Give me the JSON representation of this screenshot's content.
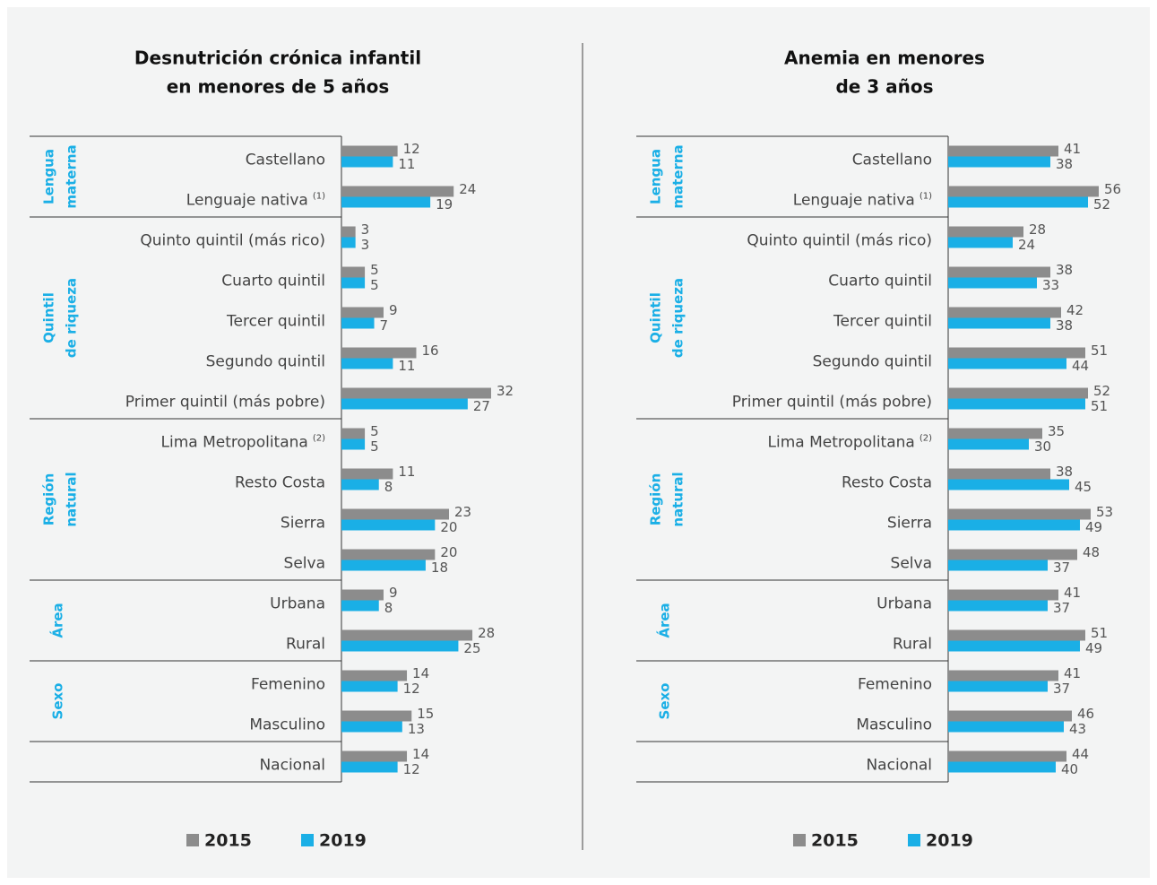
{
  "chart_data": [
    {
      "type": "bar",
      "orientation": "horizontal",
      "title": [
        "Desnutrición crónica infantil",
        "en menores de 5 años"
      ],
      "categories": [
        "Castellano",
        "Lenguaje nativa",
        "Quinto quintil (más rico)",
        "Cuarto quintil",
        "Tercer quintil",
        "Segundo quintil",
        "Primer quintil (más pobre)",
        "Lima Metropolitana",
        "Resto Costa",
        "Sierra",
        "Selva",
        "Urbana",
        "Rural",
        "Femenino",
        "Masculino",
        "Nacional"
      ],
      "category_notes": [
        null,
        "(1)",
        null,
        null,
        null,
        null,
        null,
        "(2)",
        null,
        null,
        null,
        null,
        null,
        null,
        null,
        null
      ],
      "groups": [
        {
          "label": [
            "Lengua",
            "materna"
          ],
          "size": 2
        },
        {
          "label": [
            "Quintil",
            "de riqueza"
          ],
          "size": 5
        },
        {
          "label": [
            "Región",
            "natural"
          ],
          "size": 4
        },
        {
          "label": [
            "Área"
          ],
          "size": 2
        },
        {
          "label": [
            "Sexo"
          ],
          "size": 2
        },
        {
          "label": [],
          "size": 1
        }
      ],
      "xlim": [
        0,
        46
      ],
      "series": [
        {
          "name": "2015",
          "color": "#8c8c8c",
          "values": [
            12,
            24,
            3,
            5,
            9,
            16,
            32,
            5,
            11,
            23,
            20,
            9,
            28,
            14,
            15,
            14
          ]
        },
        {
          "name": "2019",
          "color": "#1aafe6",
          "values": [
            11,
            19,
            3,
            5,
            7,
            11,
            27,
            5,
            8,
            20,
            18,
            8,
            25,
            12,
            13,
            12
          ]
        }
      ]
    },
    {
      "type": "bar",
      "orientation": "horizontal",
      "title": [
        "Anemia en menores",
        "de 3 años"
      ],
      "categories": [
        "Castellano",
        "Lenguaje nativa",
        "Quinto quintil (más rico)",
        "Cuarto quintil",
        "Tercer quintil",
        "Segundo quintil",
        "Primer quintil (más pobre)",
        "Lima Metropolitana",
        "Resto Costa",
        "Sierra",
        "Selva",
        "Urbana",
        "Rural",
        "Femenino",
        "Masculino",
        "Nacional"
      ],
      "category_notes": [
        null,
        "(1)",
        null,
        null,
        null,
        null,
        null,
        "(2)",
        null,
        null,
        null,
        null,
        null,
        null,
        null,
        null
      ],
      "groups": [
        {
          "label": [
            "Lengua",
            "materna"
          ],
          "size": 2
        },
        {
          "label": [
            "Quintil",
            "de riqueza"
          ],
          "size": 5
        },
        {
          "label": [
            "Región",
            "natural"
          ],
          "size": 4
        },
        {
          "label": [
            "Área"
          ],
          "size": 2
        },
        {
          "label": [
            "Sexo"
          ],
          "size": 2
        },
        {
          "label": [],
          "size": 1
        }
      ],
      "xlim": [
        0,
        80
      ],
      "series": [
        {
          "name": "2015",
          "color": "#8c8c8c",
          "values": [
            41,
            56,
            28,
            38,
            42,
            51,
            52,
            35,
            38,
            53,
            48,
            41,
            51,
            41,
            46,
            44
          ]
        },
        {
          "name": "2019",
          "color": "#1aafe6",
          "values": [
            38,
            52,
            24,
            33,
            38,
            44,
            51,
            30,
            45,
            49,
            37,
            37,
            49,
            37,
            43,
            40
          ]
        }
      ]
    }
  ]
}
